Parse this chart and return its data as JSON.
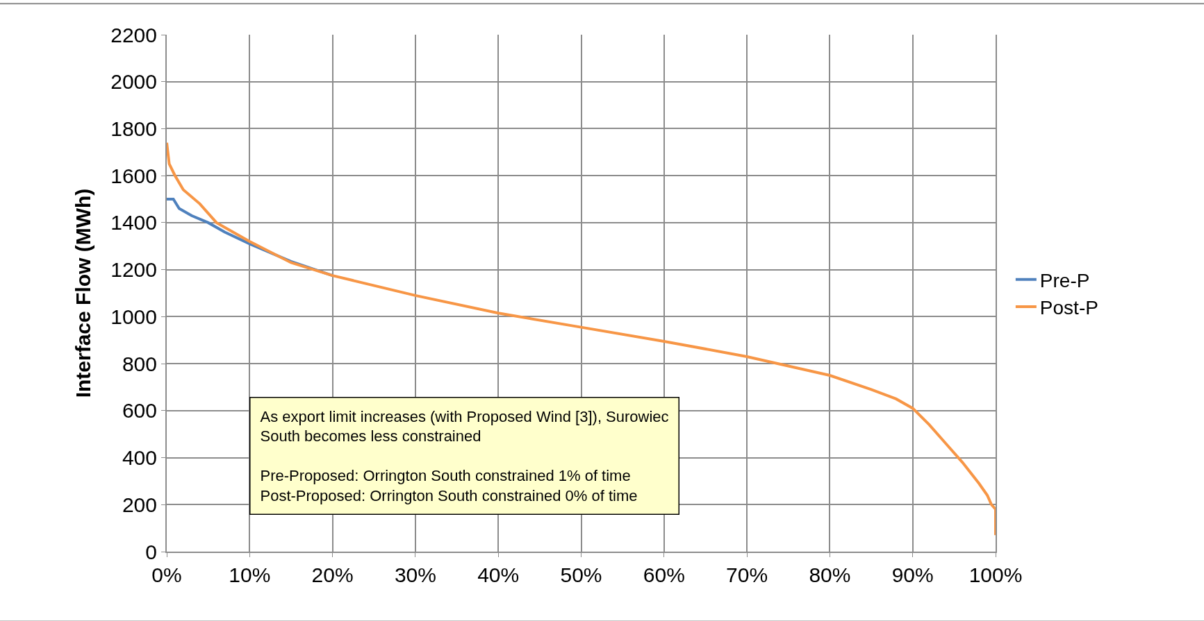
{
  "chart_data": {
    "type": "line",
    "ylabel": "Interface Flow (MWh)",
    "xlim": [
      0,
      100
    ],
    "xticks": [
      {
        "value": 0,
        "label": "0%"
      },
      {
        "value": 10,
        "label": "10%"
      },
      {
        "value": 20,
        "label": "20%"
      },
      {
        "value": 30,
        "label": "30%"
      },
      {
        "value": 40,
        "label": "40%"
      },
      {
        "value": 50,
        "label": "50%"
      },
      {
        "value": 60,
        "label": "60%"
      },
      {
        "value": 70,
        "label": "70%"
      },
      {
        "value": 80,
        "label": "80%"
      },
      {
        "value": 90,
        "label": "90%"
      },
      {
        "value": 100,
        "label": "100%"
      }
    ],
    "ylim": [
      0,
      2200
    ],
    "yticks": [
      0,
      200,
      400,
      600,
      800,
      1000,
      1200,
      1400,
      1600,
      1800,
      2000,
      2200
    ],
    "grid": true,
    "legend": "right",
    "marker": "none",
    "line_style": "solid",
    "series": [
      {
        "name": "Pre-P",
        "color": "#4f81bd",
        "x": [
          0,
          0.8,
          1.5,
          3,
          5,
          7,
          10,
          15,
          20
        ],
        "values": [
          1500,
          1500,
          1460,
          1430,
          1400,
          1360,
          1310,
          1235,
          1175
        ]
      },
      {
        "name": "Post-P",
        "color": "#f79646",
        "x": [
          0,
          0.3,
          1,
          2,
          4,
          6,
          8,
          10,
          15,
          20,
          30,
          40,
          50,
          60,
          70,
          75,
          80,
          85,
          88,
          90,
          92,
          94,
          96,
          98,
          99,
          99.5,
          100,
          100
        ],
        "values": [
          1740,
          1650,
          1600,
          1540,
          1480,
          1400,
          1360,
          1320,
          1230,
          1175,
          1090,
          1015,
          955,
          895,
          830,
          790,
          750,
          690,
          650,
          610,
          540,
          460,
          380,
          290,
          240,
          200,
          180,
          70
        ]
      }
    ],
    "annotations": [
      "As export limit increases (with Proposed Wind [3]), Surowiec\nSouth becomes less constrained\n\nPre-Proposed: Orrington South constrained 1% of time\nPost-Proposed: Orrington South constrained 0% of time"
    ]
  }
}
